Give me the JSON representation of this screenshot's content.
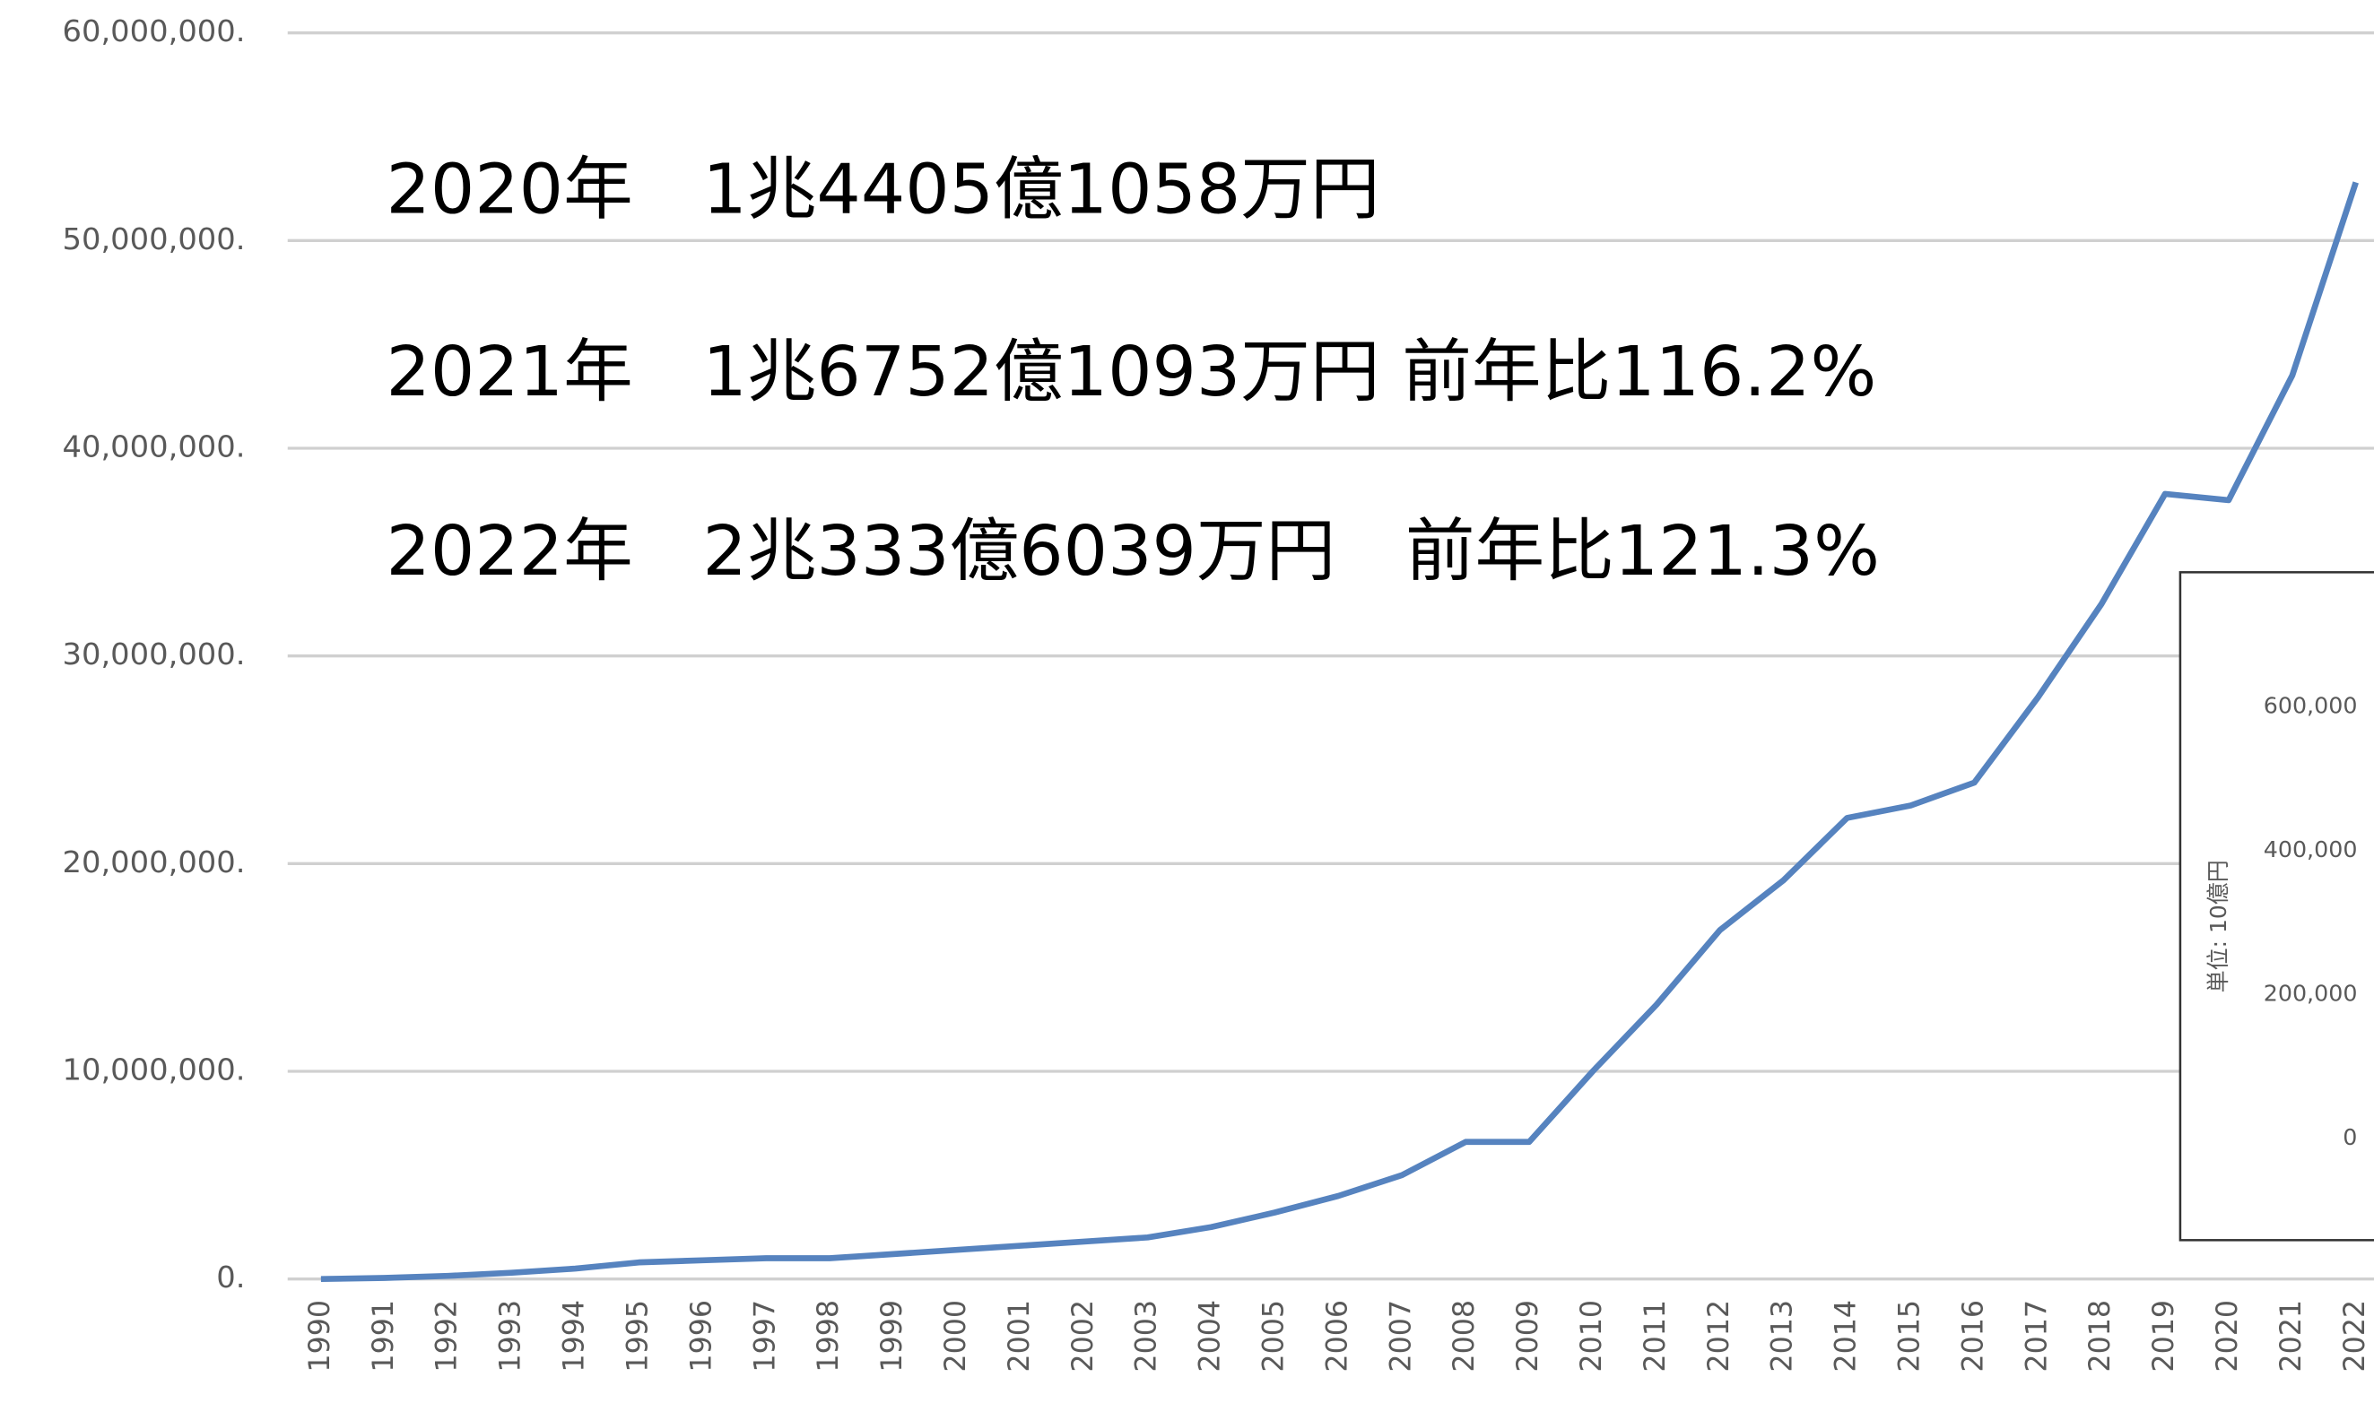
{
  "chart_data": {
    "type": "line",
    "categories": [
      "1990",
      "1991",
      "1992",
      "1993",
      "1994",
      "1995",
      "1996",
      "1997",
      "1998",
      "1999",
      "2000",
      "2001",
      "2002",
      "2003",
      "2004",
      "2005",
      "2006",
      "2007",
      "2008",
      "2009",
      "2010",
      "2011",
      "2012",
      "2013",
      "2014",
      "2015",
      "2016",
      "2017",
      "2018",
      "2019",
      "2020",
      "2021",
      "2022"
    ],
    "series": [
      {
        "color": "#5683bf",
        "values": [
          0,
          50000,
          150000,
          300000,
          500000,
          800000,
          900000,
          1000000,
          1000000,
          1200000,
          1400000,
          1600000,
          1800000,
          2000000,
          2500000,
          3200000,
          4000000,
          5000000,
          6600000,
          6600000,
          10000000,
          13200000,
          16800000,
          19200000,
          22200000,
          22800000,
          23900000,
          28000000,
          32500000,
          37800000,
          37500000,
          43500000,
          52800000
        ]
      }
    ],
    "ylim": [
      0,
      60000000
    ],
    "yticks": [
      {
        "value": 0,
        "label": "0."
      },
      {
        "value": 10000000,
        "label": "10,000,000."
      },
      {
        "value": 20000000,
        "label": "20,000,000."
      },
      {
        "value": 30000000,
        "label": "30,000,000."
      },
      {
        "value": 40000000,
        "label": "40,000,000."
      },
      {
        "value": 50000000,
        "label": "50,000,000."
      },
      {
        "value": 60000000,
        "label": "60,000,000."
      }
    ],
    "grid": true,
    "annotations": [
      "2020年　1兆4405億1058万円",
      "2021年　1兆6752億1093万円 前年比116.2%",
      "2022年　2兆333億6039万円　前年比121.3%"
    ]
  },
  "inset": {
    "ylabel": "単位: 10億円",
    "ylim": [
      0,
      600000
    ],
    "yticks": [
      {
        "value": 0,
        "label": "0"
      },
      {
        "value": 200000,
        "label": "200,000"
      },
      {
        "value": 400000,
        "label": "400,000"
      },
      {
        "value": 600000,
        "label": "600,000"
      }
    ]
  }
}
